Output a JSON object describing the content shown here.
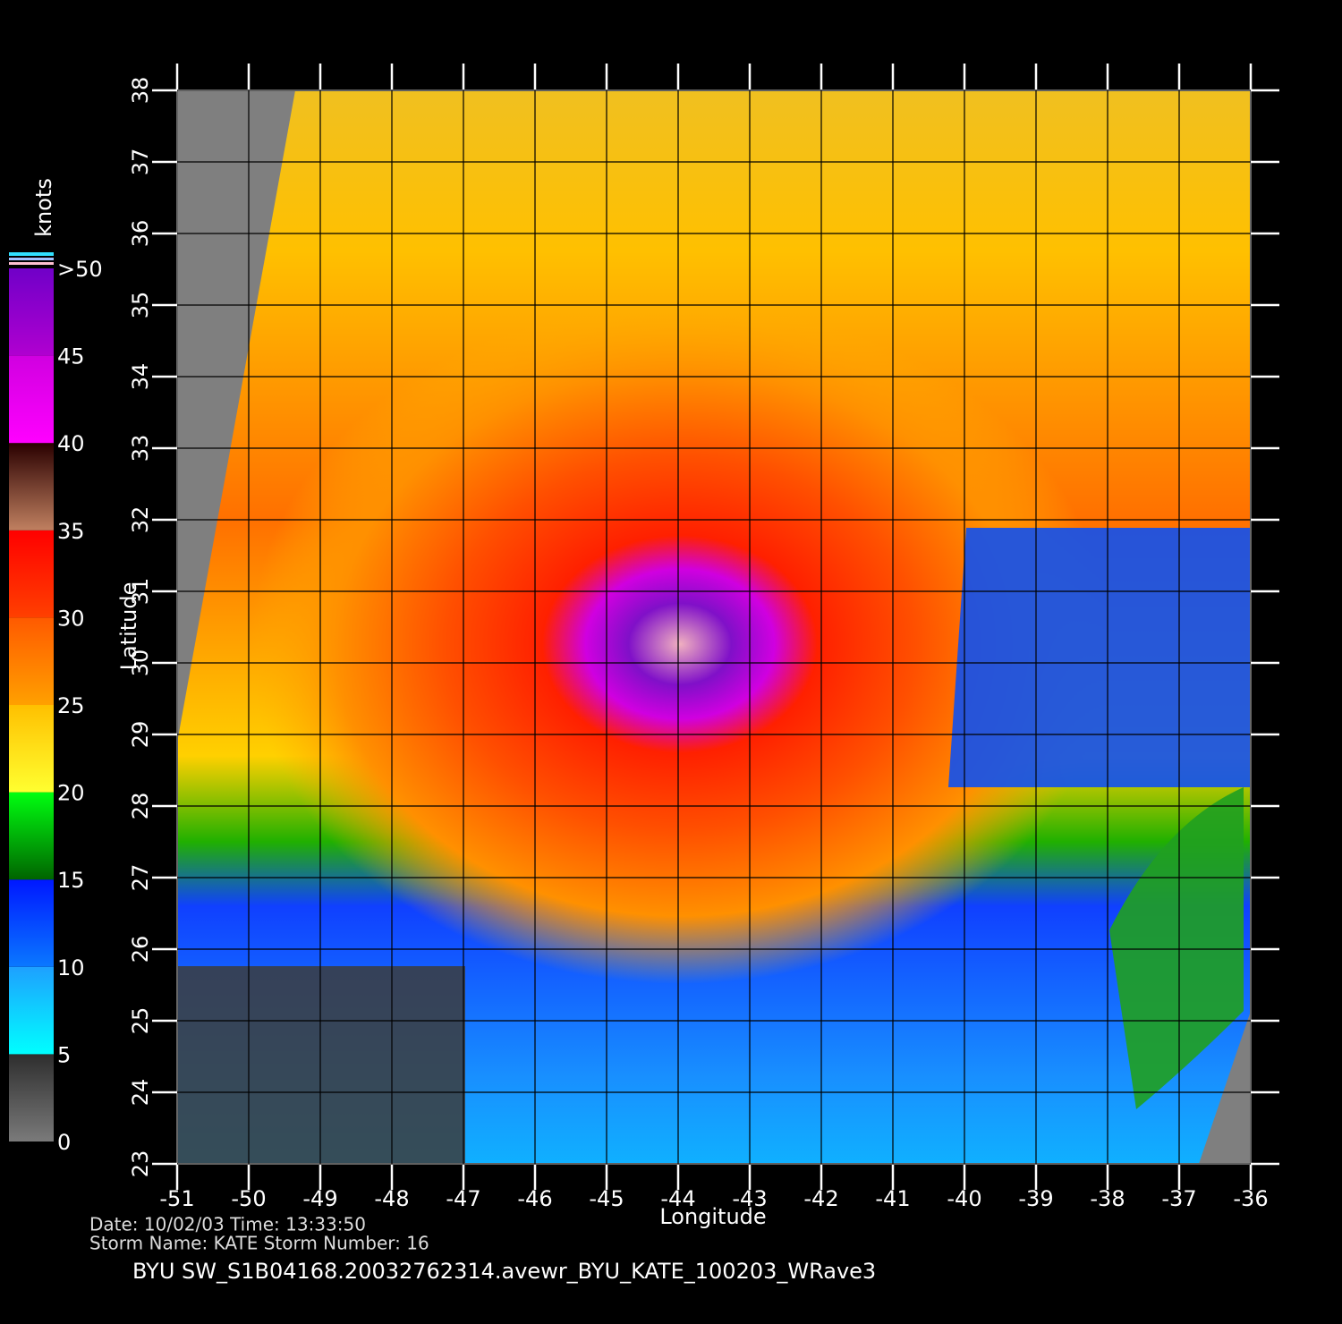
{
  "map": {
    "title": "BYU  SW_S1B04168.20032762314.avewr_BYU_KATE_100203_WRave3",
    "date_line": "Date: 10/02/03   Time: 13:33:50",
    "storm_line": "Storm  Name: KATE    Storm  Number: 16",
    "xlabel": "Longitude",
    "ylabel": "Latitude",
    "xlim": [
      -51,
      -36
    ],
    "ylim": [
      23,
      38
    ],
    "xticks": [
      -51,
      -50,
      -49,
      -48,
      -47,
      -46,
      -45,
      -44,
      -43,
      -42,
      -41,
      -40,
      -39,
      -38,
      -37,
      -36
    ],
    "yticks": [
      23,
      24,
      25,
      26,
      27,
      28,
      29,
      30,
      31,
      32,
      33,
      34,
      35,
      36,
      37,
      38
    ],
    "grid": true,
    "colorbar": {
      "title": "knots",
      "lim": [
        0,
        50
      ],
      "ticks": [
        0,
        5,
        10,
        15,
        20,
        25,
        30,
        35,
        40,
        45,
        {
          "value": 50,
          "label": ">50"
        }
      ],
      "bands": [
        [
          "#7a7a7a",
          "#2e2e2e"
        ],
        [
          "#00ffff",
          "#1ea0ff"
        ],
        [
          "#0a78ff",
          "#0018ff"
        ],
        [
          "#006400",
          "#00ff10"
        ],
        [
          "#ffff30",
          "#ffc000"
        ],
        [
          "#ffa000",
          "#ff5a00"
        ],
        [
          "#ff4000",
          "#ff0000"
        ],
        [
          "#c08060",
          "#2a0000"
        ],
        [
          "#ff00ff",
          "#d000e0"
        ],
        [
          "#b000d0",
          "#7000c8"
        ]
      ]
    }
  }
}
